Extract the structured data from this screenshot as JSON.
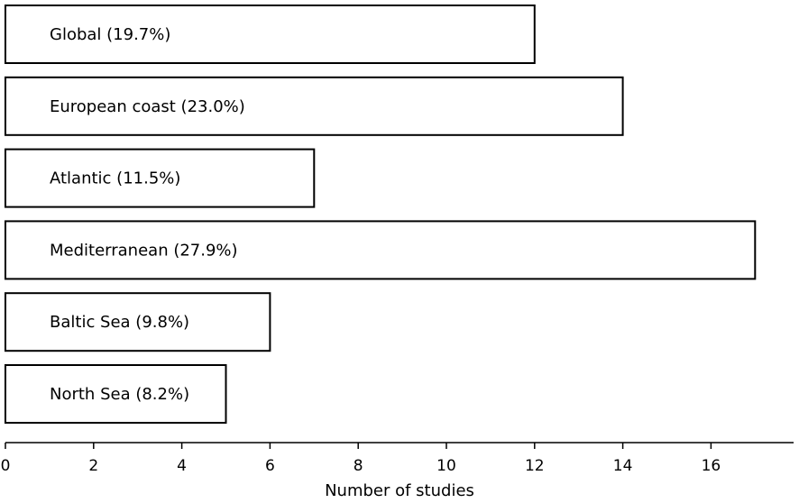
{
  "chart_data": {
    "type": "bar",
    "orientation": "horizontal",
    "categories": [
      "Global",
      "European coast",
      "Atlantic",
      "Mediterranean",
      "Baltic Sea",
      "North Sea"
    ],
    "values": [
      12,
      14,
      7,
      17,
      6,
      5
    ],
    "bar_labels": [
      "Global (19.7%)",
      "European coast (23.0%)",
      "Atlantic (11.5%)",
      "Mediterranean (27.9%)",
      "Baltic Sea (9.8%)",
      "North Sea (8.2%)"
    ],
    "xlabel": "Number of studies",
    "xlim": [
      0,
      17.9
    ],
    "xticks": [
      0,
      2,
      4,
      6,
      8,
      10,
      12,
      14,
      16
    ],
    "grid": false,
    "bar_fill": "#ffffff",
    "bar_edge": "#000000"
  }
}
